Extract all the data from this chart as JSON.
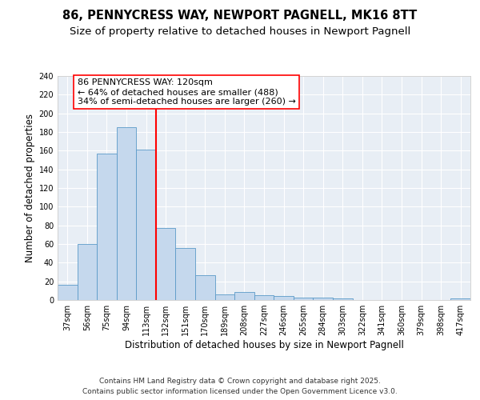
{
  "title1": "86, PENNYCRESS WAY, NEWPORT PAGNELL, MK16 8TT",
  "title2": "Size of property relative to detached houses in Newport Pagnell",
  "xlabel": "Distribution of detached houses by size in Newport Pagnell",
  "ylabel": "Number of detached properties",
  "categories": [
    "37sqm",
    "56sqm",
    "75sqm",
    "94sqm",
    "113sqm",
    "132sqm",
    "151sqm",
    "170sqm",
    "189sqm",
    "208sqm",
    "227sqm",
    "246sqm",
    "265sqm",
    "284sqm",
    "303sqm",
    "322sqm",
    "341sqm",
    "360sqm",
    "379sqm",
    "398sqm",
    "417sqm"
  ],
  "values": [
    16,
    60,
    157,
    185,
    161,
    77,
    56,
    27,
    6,
    9,
    5,
    4,
    3,
    3,
    2,
    0,
    0,
    0,
    0,
    0,
    2
  ],
  "bar_color": "#c5d8ed",
  "bar_edge_color": "#5a9ac8",
  "redline_x": 4.5,
  "annotation_line1": "86 PENNYCRESS WAY: 120sqm",
  "annotation_line2": "← 64% of detached houses are smaller (488)",
  "annotation_line3": "34% of semi-detached houses are larger (260) →",
  "ylim": [
    0,
    240
  ],
  "yticks": [
    0,
    20,
    40,
    60,
    80,
    100,
    120,
    140,
    160,
    180,
    200,
    220,
    240
  ],
  "bg_color": "#e8eef5",
  "grid_color": "#ffffff",
  "footer1": "Contains HM Land Registry data © Crown copyright and database right 2025.",
  "footer2": "Contains public sector information licensed under the Open Government Licence v3.0.",
  "title_fontsize": 10.5,
  "subtitle_fontsize": 9.5,
  "axis_label_fontsize": 8.5,
  "tick_fontsize": 7,
  "annotation_fontsize": 8,
  "footer_fontsize": 6.5
}
